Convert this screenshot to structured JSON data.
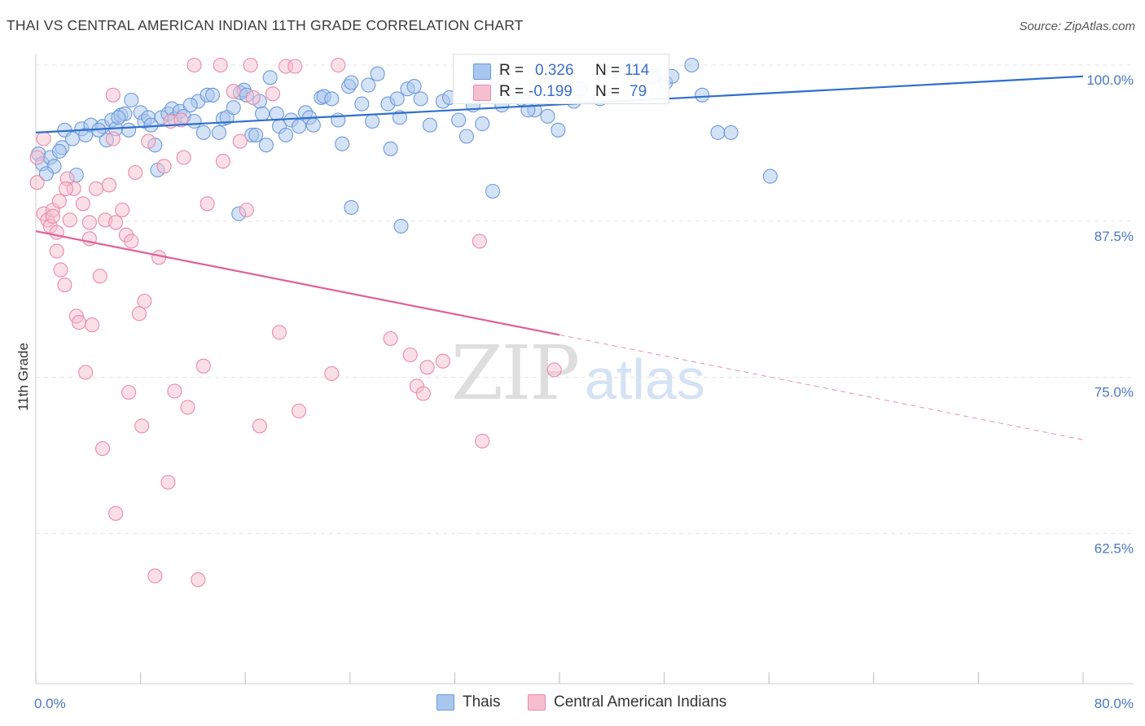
{
  "title": "THAI VS CENTRAL AMERICAN INDIAN 11TH GRADE CORRELATION CHART",
  "source": "Source: ZipAtlas.com",
  "watermark": {
    "zip": "ZIP",
    "atlas": "atlas"
  },
  "colors": {
    "blue_fill": "#a9c6ee",
    "blue_stroke": "#6d9ad9",
    "blue_line": "#2f6fcc",
    "pink_fill": "#f6bfd0",
    "pink_stroke": "#e98aab",
    "pink_line": "#e0609a",
    "tick_text": "#4a78c2",
    "grid": "#e3e3e3"
  },
  "legend": {
    "r_label": "R =",
    "n_label": "N =",
    "rows": [
      {
        "series": "Thais",
        "r": "0.326",
        "n": "114"
      },
      {
        "series": "Central American Indians",
        "r": "-0.199",
        "n": "79"
      }
    ]
  },
  "bottom_legend": [
    "Thais",
    "Central American Indians"
  ],
  "chart_data": {
    "type": "scatter",
    "title": "THAI VS CENTRAL AMERICAN INDIAN 11TH GRADE CORRELATION CHART",
    "xlabel": "",
    "ylabel": "11th Grade",
    "xlim": [
      0,
      80
    ],
    "ylim": [
      50,
      100
    ],
    "x_tick_labels": [
      "0.0%",
      "80.0%"
    ],
    "y_ticks": [
      62.5,
      75.0,
      87.5,
      100.0
    ],
    "y_tick_labels": [
      "62.5%",
      "75.0%",
      "87.5%",
      "100.0%"
    ],
    "grid": true,
    "series": [
      {
        "name": "Thais",
        "color": "#6d9ad9",
        "trend": {
          "x": [
            0,
            80
          ],
          "y": [
            94.6,
            99.1
          ],
          "dashed_from_x": null
        },
        "points": [
          [
            0.2,
            92.9
          ],
          [
            0.5,
            92.1
          ],
          [
            1.1,
            92.6
          ],
          [
            1.4,
            91.9
          ],
          [
            2.0,
            93.4
          ],
          [
            3.1,
            91.2
          ],
          [
            2.2,
            94.8
          ],
          [
            2.8,
            94.1
          ],
          [
            3.5,
            94.9
          ],
          [
            3.8,
            94.4
          ],
          [
            4.2,
            95.2
          ],
          [
            5.1,
            95.1
          ],
          [
            5.4,
            94.0
          ],
          [
            5.8,
            95.6
          ],
          [
            6.1,
            94.9
          ],
          [
            6.5,
            96.0
          ],
          [
            6.8,
            96.1
          ],
          [
            7.1,
            94.8
          ],
          [
            7.3,
            97.2
          ],
          [
            8.0,
            96.2
          ],
          [
            8.3,
            95.5
          ],
          [
            8.6,
            95.8
          ],
          [
            9.1,
            93.6
          ],
          [
            9.3,
            91.6
          ],
          [
            9.6,
            95.8
          ],
          [
            10.1,
            96.1
          ],
          [
            10.4,
            96.5
          ],
          [
            10.6,
            95.7
          ],
          [
            11.0,
            96.3
          ],
          [
            11.3,
            95.9
          ],
          [
            12.1,
            95.5
          ],
          [
            12.4,
            97.1
          ],
          [
            12.8,
            94.6
          ],
          [
            13.1,
            97.6
          ],
          [
            13.5,
            97.6
          ],
          [
            14.0,
            94.6
          ],
          [
            14.3,
            95.7
          ],
          [
            14.6,
            95.8
          ],
          [
            15.1,
            96.6
          ],
          [
            15.6,
            97.8
          ],
          [
            15.9,
            98.0
          ],
          [
            16.1,
            97.6
          ],
          [
            16.5,
            94.4
          ],
          [
            16.8,
            94.4
          ],
          [
            17.1,
            97.1
          ],
          [
            17.3,
            96.1
          ],
          [
            17.6,
            93.6
          ],
          [
            17.9,
            99.0
          ],
          [
            18.4,
            96.1
          ],
          [
            18.6,
            95.1
          ],
          [
            19.1,
            94.4
          ],
          [
            19.5,
            95.6
          ],
          [
            20.1,
            95.1
          ],
          [
            20.6,
            96.2
          ],
          [
            20.9,
            95.8
          ],
          [
            21.2,
            95.2
          ],
          [
            21.8,
            97.4
          ],
          [
            22.0,
            97.5
          ],
          [
            22.6,
            97.3
          ],
          [
            23.1,
            95.6
          ],
          [
            23.4,
            93.7
          ],
          [
            23.9,
            98.3
          ],
          [
            24.1,
            98.6
          ],
          [
            24.9,
            96.9
          ],
          [
            25.4,
            98.4
          ],
          [
            25.7,
            95.5
          ],
          [
            26.1,
            99.3
          ],
          [
            26.9,
            96.9
          ],
          [
            27.1,
            93.3
          ],
          [
            27.6,
            97.3
          ],
          [
            27.8,
            95.8
          ],
          [
            28.4,
            98.1
          ],
          [
            28.9,
            98.3
          ],
          [
            29.4,
            97.3
          ],
          [
            30.1,
            95.2
          ],
          [
            31.1,
            97.1
          ],
          [
            31.6,
            97.4
          ],
          [
            32.3,
            95.6
          ],
          [
            32.9,
            94.3
          ],
          [
            33.4,
            96.8
          ],
          [
            34.1,
            95.3
          ],
          [
            35.1,
            99.1
          ],
          [
            35.6,
            96.8
          ],
          [
            36.4,
            97.9
          ],
          [
            37.1,
            97.3
          ],
          [
            38.1,
            96.4
          ],
          [
            39.4,
            97.6
          ],
          [
            39.9,
            94.8
          ],
          [
            41.1,
            97.1
          ],
          [
            41.6,
            98.1
          ],
          [
            43.1,
            97.3
          ],
          [
            44.1,
            99.5
          ],
          [
            45.4,
            99.8
          ],
          [
            46.1,
            99.9
          ],
          [
            47.1,
            99.1
          ],
          [
            48.1,
            98.6
          ],
          [
            48.6,
            99.1
          ],
          [
            50.1,
            100.0
          ],
          [
            50.9,
            97.6
          ],
          [
            52.1,
            94.6
          ],
          [
            53.1,
            94.6
          ],
          [
            56.1,
            91.1
          ],
          [
            27.9,
            87.1
          ],
          [
            24.1,
            88.6
          ],
          [
            15.5,
            88.1
          ],
          [
            34.9,
            89.9
          ],
          [
            37.6,
            96.4
          ],
          [
            39.1,
            95.9
          ],
          [
            0.8,
            91.3
          ],
          [
            1.8,
            93.1
          ],
          [
            4.8,
            94.8
          ],
          [
            6.3,
            95.8
          ],
          [
            8.8,
            95.2
          ],
          [
            11.8,
            96.8
          ]
        ]
      },
      {
        "name": "Central American Indians",
        "color": "#e98aab",
        "trend": {
          "x": [
            0,
            40,
            80
          ],
          "y": [
            86.7,
            78.4,
            70.0
          ],
          "dashed_from_x": 40
        },
        "points": [
          [
            0.1,
            92.6
          ],
          [
            0.1,
            90.6
          ],
          [
            0.6,
            88.1
          ],
          [
            0.9,
            87.6
          ],
          [
            1.1,
            87.1
          ],
          [
            1.3,
            88.4
          ],
          [
            1.6,
            86.6
          ],
          [
            1.8,
            89.1
          ],
          [
            1.6,
            85.1
          ],
          [
            1.9,
            83.6
          ],
          [
            2.2,
            82.4
          ],
          [
            2.4,
            90.9
          ],
          [
            2.6,
            87.6
          ],
          [
            2.9,
            90.1
          ],
          [
            3.1,
            79.9
          ],
          [
            3.3,
            79.4
          ],
          [
            3.6,
            88.9
          ],
          [
            3.8,
            75.4
          ],
          [
            4.1,
            87.4
          ],
          [
            4.1,
            86.1
          ],
          [
            4.3,
            79.2
          ],
          [
            4.6,
            90.1
          ],
          [
            4.9,
            83.1
          ],
          [
            5.1,
            69.3
          ],
          [
            5.3,
            87.6
          ],
          [
            5.6,
            90.4
          ],
          [
            5.9,
            97.6
          ],
          [
            5.9,
            94.1
          ],
          [
            6.1,
            87.4
          ],
          [
            6.6,
            88.4
          ],
          [
            6.9,
            86.4
          ],
          [
            7.1,
            73.8
          ],
          [
            7.3,
            85.9
          ],
          [
            7.6,
            91.4
          ],
          [
            7.9,
            80.1
          ],
          [
            8.1,
            71.1
          ],
          [
            8.3,
            81.1
          ],
          [
            8.6,
            93.9
          ],
          [
            9.1,
            59.1
          ],
          [
            9.4,
            84.6
          ],
          [
            9.8,
            91.9
          ],
          [
            10.1,
            66.6
          ],
          [
            10.3,
            95.5
          ],
          [
            10.6,
            73.9
          ],
          [
            11.1,
            95.6
          ],
          [
            11.3,
            92.6
          ],
          [
            11.6,
            72.6
          ],
          [
            12.1,
            100.0
          ],
          [
            12.4,
            58.8
          ],
          [
            12.8,
            75.9
          ],
          [
            13.1,
            88.9
          ],
          [
            14.1,
            100.0
          ],
          [
            14.3,
            92.3
          ],
          [
            15.1,
            97.9
          ],
          [
            15.6,
            93.9
          ],
          [
            16.1,
            88.4
          ],
          [
            16.4,
            100.0
          ],
          [
            17.1,
            71.1
          ],
          [
            18.1,
            97.7
          ],
          [
            18.6,
            78.6
          ],
          [
            19.1,
            99.9
          ],
          [
            19.8,
            99.9
          ],
          [
            20.1,
            72.3
          ],
          [
            22.6,
            75.3
          ],
          [
            23.1,
            100.0
          ],
          [
            27.1,
            78.1
          ],
          [
            28.6,
            76.8
          ],
          [
            29.1,
            74.3
          ],
          [
            29.6,
            73.7
          ],
          [
            29.9,
            75.8
          ],
          [
            31.1,
            76.3
          ],
          [
            33.9,
            85.9
          ],
          [
            34.1,
            69.9
          ],
          [
            39.6,
            75.6
          ],
          [
            6.1,
            64.1
          ],
          [
            2.3,
            90.1
          ],
          [
            16.6,
            97.4
          ],
          [
            0.6,
            94.1
          ],
          [
            1.3,
            87.9
          ]
        ]
      }
    ]
  }
}
